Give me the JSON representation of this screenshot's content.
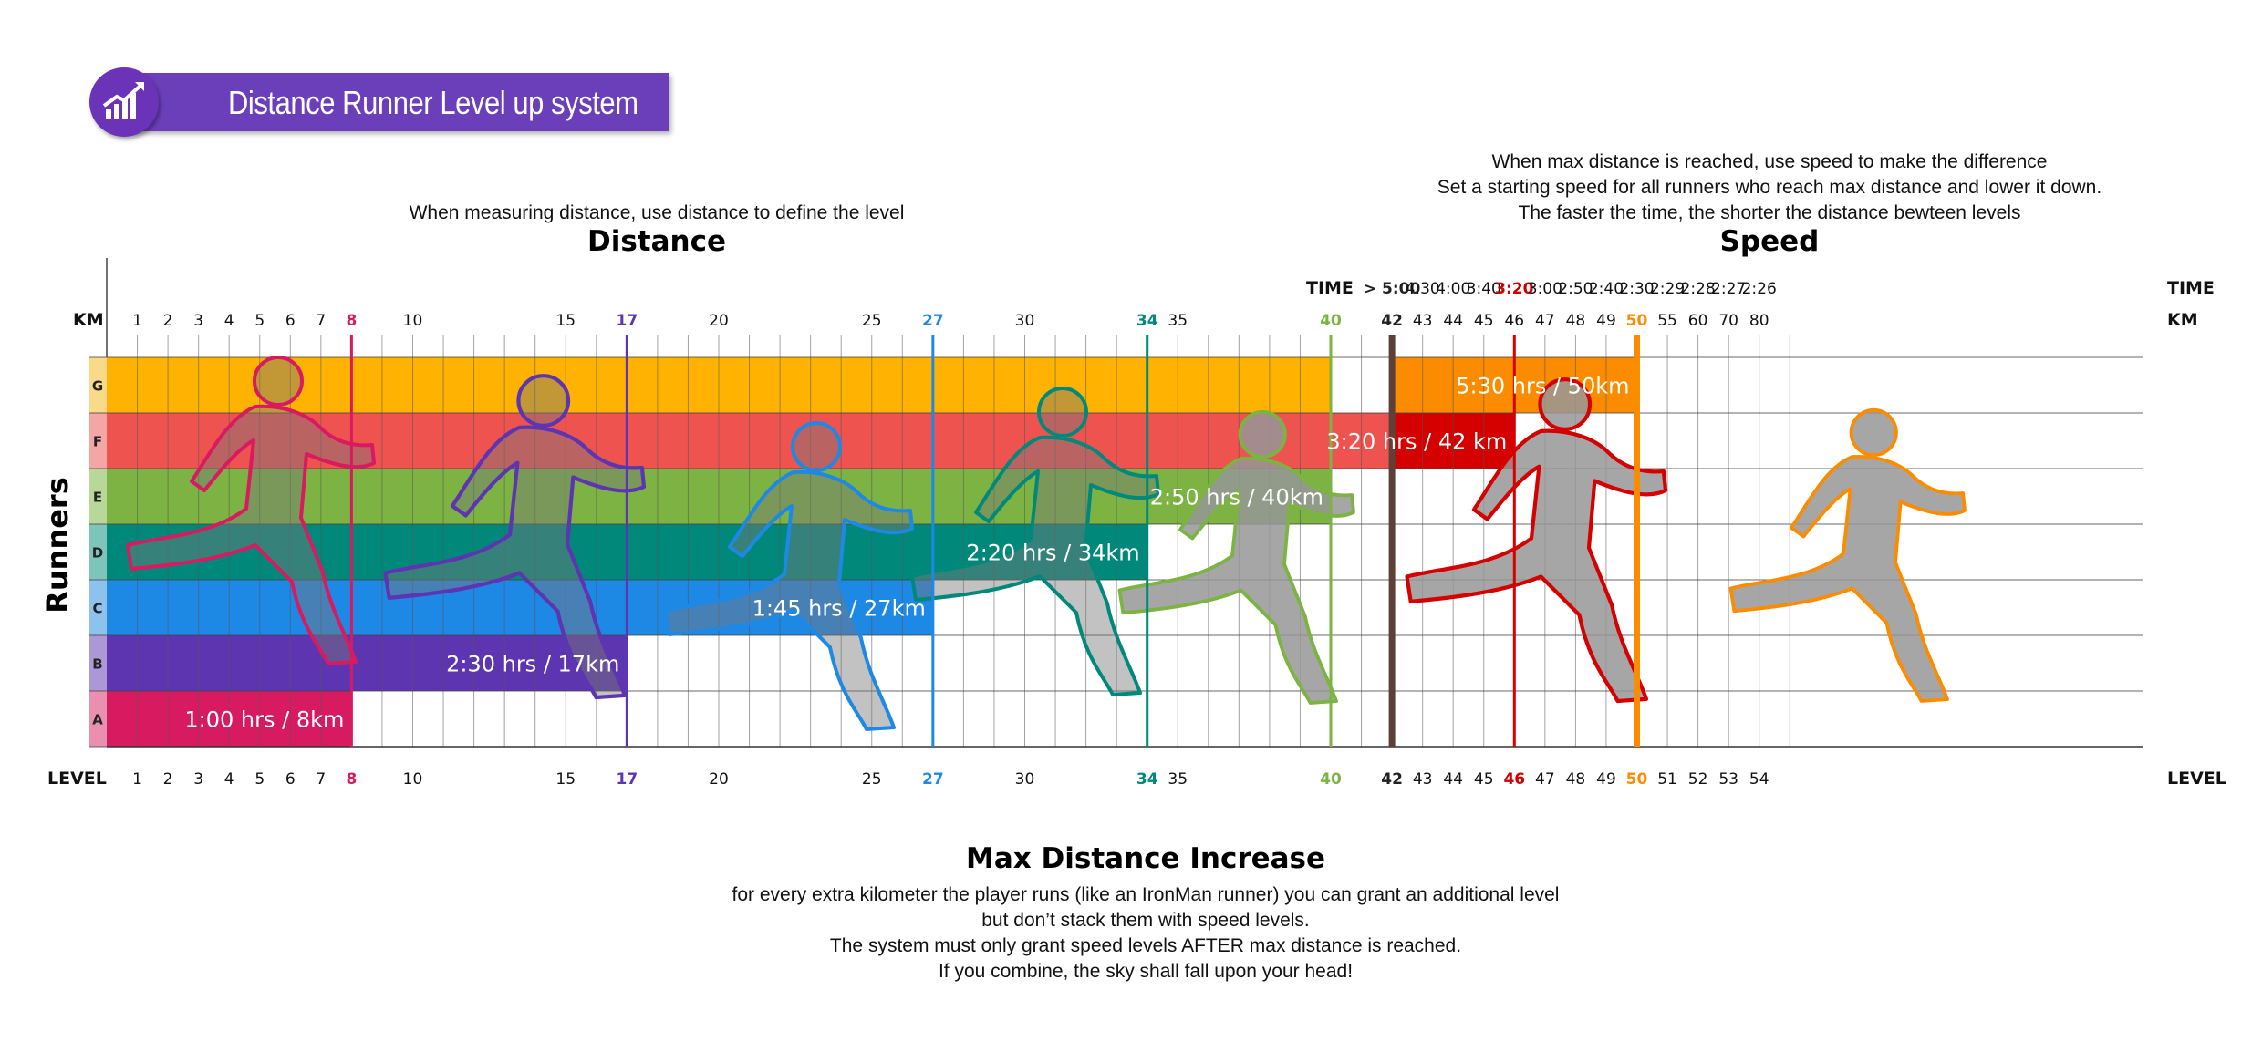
{
  "title": "Distance Runner Level up system",
  "icon": "chart-trend-up-icon",
  "distance_note": "When measuring distance, use distance to define the level",
  "distance_heading": "Distance",
  "speed_note_lines": [
    "When max distance is reached, use speed to make the difference",
    "Set a starting speed for all runners who reach max distance and lower it down.",
    "The faster the time, the shorter the distance bewteen levels"
  ],
  "speed_heading": "Speed",
  "axis_labels": {
    "km": "KM",
    "time": "TIME",
    "level": "LEVEL",
    "runners": "Runners"
  },
  "km_ticks": [
    {
      "v": 1,
      "t": "1"
    },
    {
      "v": 2,
      "t": "2"
    },
    {
      "v": 3,
      "t": "3"
    },
    {
      "v": 4,
      "t": "4"
    },
    {
      "v": 5,
      "t": "5"
    },
    {
      "v": 6,
      "t": "6"
    },
    {
      "v": 7,
      "t": "7"
    },
    {
      "v": 8,
      "t": "8",
      "c": "#d81b60"
    },
    {
      "v": 10,
      "t": "10"
    },
    {
      "v": 15,
      "t": "15"
    },
    {
      "v": 17,
      "t": "17",
      "c": "#5e35b1"
    },
    {
      "v": 20,
      "t": "20"
    },
    {
      "v": 25,
      "t": "25"
    },
    {
      "v": 27,
      "t": "27",
      "c": "#1e88e5"
    },
    {
      "v": 30,
      "t": "30"
    },
    {
      "v": 34,
      "t": "34",
      "c": "#00897b"
    },
    {
      "v": 35,
      "t": "35"
    },
    {
      "v": 40,
      "t": "40",
      "c": "#7cb342"
    },
    {
      "v": 42,
      "t": "42",
      "c": "#222"
    },
    {
      "v": 43,
      "t": "43"
    },
    {
      "v": 44,
      "t": "44"
    },
    {
      "v": 45,
      "t": "45"
    },
    {
      "v": 46,
      "t": "46"
    },
    {
      "v": 47,
      "t": "47"
    },
    {
      "v": 48,
      "t": "48"
    },
    {
      "v": 49,
      "t": "49"
    },
    {
      "v": 50,
      "t": "50",
      "c": "#fb8c00"
    },
    {
      "v": 51,
      "t": "55"
    },
    {
      "v": 52,
      "t": "60"
    },
    {
      "v": 53,
      "t": "70"
    },
    {
      "v": 54,
      "t": "80"
    }
  ],
  "time_ticks": [
    {
      "v": 42,
      "t": "> 5:00",
      "c": "#222"
    },
    {
      "v": 43,
      "t": "4:30"
    },
    {
      "v": 44,
      "t": "4:00"
    },
    {
      "v": 45,
      "t": "3:40"
    },
    {
      "v": 46,
      "t": "3:20",
      "c": "#cc0000"
    },
    {
      "v": 47,
      "t": "3:00"
    },
    {
      "v": 48,
      "t": "2:50"
    },
    {
      "v": 49,
      "t": "2:40"
    },
    {
      "v": 50,
      "t": "2:30"
    },
    {
      "v": 51,
      "t": "2:29"
    },
    {
      "v": 52,
      "t": "2:28"
    },
    {
      "v": 53,
      "t": "2:27"
    },
    {
      "v": 54,
      "t": "2:26"
    }
  ],
  "level_ticks": [
    {
      "v": 1,
      "t": "1"
    },
    {
      "v": 2,
      "t": "2"
    },
    {
      "v": 3,
      "t": "3"
    },
    {
      "v": 4,
      "t": "4"
    },
    {
      "v": 5,
      "t": "5"
    },
    {
      "v": 6,
      "t": "6"
    },
    {
      "v": 7,
      "t": "7"
    },
    {
      "v": 8,
      "t": "8",
      "c": "#d81b60"
    },
    {
      "v": 10,
      "t": "10"
    },
    {
      "v": 15,
      "t": "15"
    },
    {
      "v": 17,
      "t": "17",
      "c": "#5e35b1"
    },
    {
      "v": 20,
      "t": "20"
    },
    {
      "v": 25,
      "t": "25"
    },
    {
      "v": 27,
      "t": "27",
      "c": "#1e88e5"
    },
    {
      "v": 30,
      "t": "30"
    },
    {
      "v": 34,
      "t": "34",
      "c": "#00897b"
    },
    {
      "v": 35,
      "t": "35"
    },
    {
      "v": 40,
      "t": "40",
      "c": "#7cb342"
    },
    {
      "v": 42,
      "t": "42",
      "c": "#222"
    },
    {
      "v": 43,
      "t": "43"
    },
    {
      "v": 44,
      "t": "44"
    },
    {
      "v": 45,
      "t": "45"
    },
    {
      "v": 46,
      "t": "46",
      "c": "#cc0000"
    },
    {
      "v": 47,
      "t": "47"
    },
    {
      "v": 48,
      "t": "48"
    },
    {
      "v": 49,
      "t": "49"
    },
    {
      "v": 50,
      "t": "50",
      "c": "#fb8c00"
    },
    {
      "v": 51,
      "t": "51"
    },
    {
      "v": 52,
      "t": "52"
    },
    {
      "v": 53,
      "t": "53"
    },
    {
      "v": 54,
      "t": "54"
    }
  ],
  "runners": [
    {
      "id": "G",
      "color": "#ffb300",
      "side": "#f9d98a",
      "end_level": 40,
      "label": ""
    },
    {
      "id": "F",
      "color": "#ef5350",
      "side": "#f4a6a4",
      "end_level": 42,
      "label": ""
    },
    {
      "id": "E",
      "color": "#7cb342",
      "side": "#b8d89a",
      "end_level": 40,
      "label": "2:50 hrs / 40km"
    },
    {
      "id": "D",
      "color": "#00897b",
      "side": "#7fc4bb",
      "end_level": 34,
      "label": "2:20 hrs / 34km"
    },
    {
      "id": "C",
      "color": "#1e88e5",
      "side": "#8fc1ef",
      "end_level": 27,
      "label": "1:45 hrs / 27km"
    },
    {
      "id": "B",
      "color": "#5e35b1",
      "side": "#ad98d6",
      "end_level": 17,
      "label": "2:30 hrs / 17km"
    },
    {
      "id": "A",
      "color": "#d81b60",
      "side": "#eb8fb0",
      "end_level": 8,
      "label": "1:00 hrs / 8km"
    }
  ],
  "speed_bars": [
    {
      "row": "G",
      "start_level": 42,
      "end_level": 50,
      "color": "#fb8c00",
      "label": "5:30 hrs / 50km"
    },
    {
      "row": "F",
      "start_level": 42,
      "end_level": 46,
      "color": "#d50000",
      "label": "3:20 hrs / 42 km"
    }
  ],
  "milestones": [
    {
      "level": 8,
      "color": "#d81b60"
    },
    {
      "level": 17,
      "color": "#5e35b1"
    },
    {
      "level": 27,
      "color": "#1e88e5"
    },
    {
      "level": 34,
      "color": "#00897b"
    },
    {
      "level": 40,
      "color": "#7cb342"
    },
    {
      "level": 42,
      "color": "#5d4037"
    },
    {
      "level": 46,
      "color": "#d50000"
    },
    {
      "level": 50,
      "color": "#fb8c00"
    }
  ],
  "runner_silhouettes": [
    {
      "name": "runner-a-silhouette",
      "outline": "#d81b60"
    },
    {
      "name": "runner-b-silhouette",
      "outline": "#5e35b1"
    },
    {
      "name": "runner-c-silhouette",
      "outline": "#1e88e5"
    },
    {
      "name": "runner-d-silhouette",
      "outline": "#00897b"
    },
    {
      "name": "runner-e-silhouette",
      "outline": "#7cb342"
    },
    {
      "name": "runner-f-silhouette",
      "outline": "#d50000"
    },
    {
      "name": "runner-g-silhouette",
      "outline": "#fb8c00"
    }
  ],
  "footer_heading": "Max Distance Increase",
  "footer_lines": [
    "for every extra kilometer the player runs (like an IronMan runner) you can grant an additional level",
    "but don’t stack them with speed levels.",
    "The system must only grant speed levels AFTER max distance is reached.",
    "If you combine, the sky shall fall upon your head!"
  ]
}
